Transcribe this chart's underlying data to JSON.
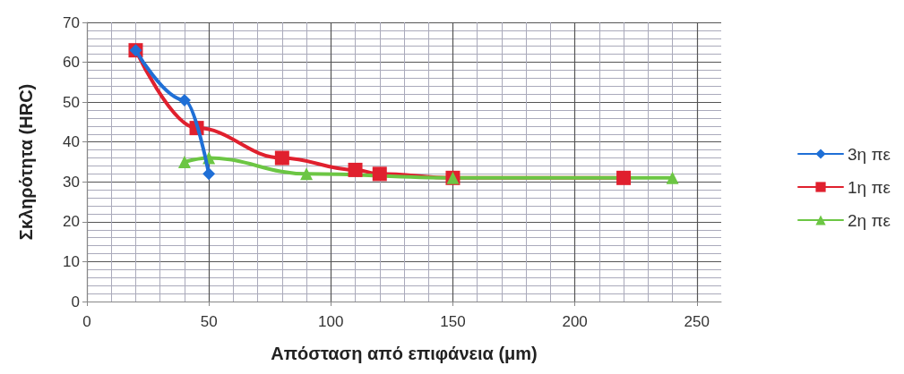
{
  "chart_data": {
    "type": "line",
    "xlabel": "Απόσταση από επιφάνεια (μm)",
    "ylabel": "Σκληρότητα (HRC)",
    "xlim": [
      0,
      260
    ],
    "xticks": [
      0,
      50,
      100,
      150,
      200,
      250
    ],
    "ylim": [
      0,
      70
    ],
    "yticks": [
      0,
      10,
      20,
      30,
      40,
      50,
      60,
      70
    ],
    "grid": true,
    "legend": "right",
    "line_style": "solid",
    "series": [
      {
        "name": "3η πε",
        "color": "#1f6fd6",
        "marker": "diamond",
        "x": [
          20,
          40,
          50
        ],
        "values": [
          63,
          50.5,
          32
        ]
      },
      {
        "name": "1η πε",
        "color": "#e0202e",
        "marker": "square",
        "x": [
          20,
          45,
          80,
          110,
          120,
          150,
          220
        ],
        "values": [
          63,
          43.5,
          36,
          33,
          32,
          31,
          31
        ]
      },
      {
        "name": "2η πε",
        "color": "#6cc644",
        "marker": "triangle",
        "x": [
          40,
          50,
          90,
          150,
          240
        ],
        "values": [
          35,
          36,
          32,
          31,
          31
        ]
      }
    ]
  }
}
